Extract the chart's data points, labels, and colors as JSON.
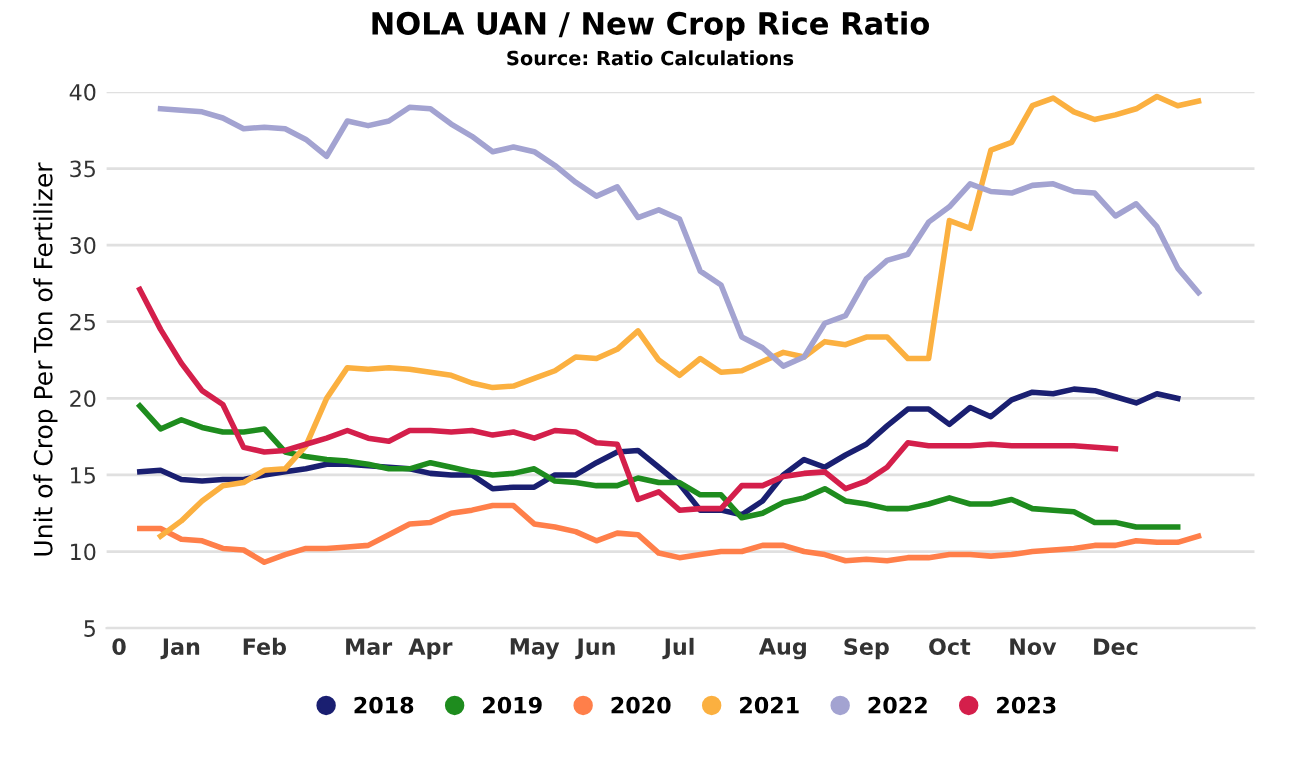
{
  "chart_data": {
    "type": "line",
    "title": "NOLA UAN / New Crop Rice Ratio",
    "subtitle": "Source: Ratio Calculations",
    "ylabel": "Unit of Crop Per Ton of Fertilizer",
    "categories": [
      "0",
      null,
      null,
      "Jan",
      null,
      null,
      null,
      "Feb",
      null,
      null,
      null,
      null,
      "Mar",
      null,
      null,
      "Apr",
      null,
      null,
      null,
      null,
      "May",
      null,
      null,
      "Jun",
      null,
      null,
      null,
      "Jul",
      null,
      null,
      null,
      null,
      "Aug",
      null,
      null,
      null,
      "Sep",
      null,
      null,
      null,
      "Oct",
      null,
      null,
      null,
      "Nov",
      null,
      null,
      null,
      "Dec",
      null,
      null,
      null,
      null,
      null,
      null
    ],
    "ylim": [
      5,
      40
    ],
    "yticks": [
      5,
      10,
      15,
      20,
      25,
      30,
      35,
      40
    ],
    "grid": "y",
    "legend": "bottom",
    "marker": "none",
    "line_style": "solid",
    "series": [
      {
        "name": "2018",
        "color": "#1a1f71",
        "values": [
          null,
          15.2,
          15.3,
          14.7,
          14.6,
          14.7,
          14.7,
          15.0,
          15.2,
          15.4,
          15.7,
          15.7,
          15.6,
          15.5,
          15.4,
          15.1,
          15.0,
          15.0,
          14.1,
          14.2,
          14.2,
          15.0,
          15.0,
          15.8,
          16.5,
          16.6,
          15.5,
          14.4,
          12.7,
          12.7,
          12.4,
          13.3,
          15.0,
          16.0,
          15.5,
          16.3,
          17.0,
          18.2,
          19.3,
          19.3,
          18.3,
          19.4,
          18.8,
          19.9,
          20.4,
          20.3,
          20.6,
          20.5,
          20.1,
          19.7,
          20.3,
          20.0,
          null,
          null,
          null
        ]
      },
      {
        "name": "2019",
        "color": "#1e8c1e",
        "values": [
          null,
          19.5,
          18.0,
          18.6,
          18.1,
          17.8,
          17.8,
          18.0,
          16.5,
          16.2,
          16.0,
          15.9,
          15.7,
          15.4,
          15.4,
          15.8,
          15.5,
          15.2,
          15.0,
          15.1,
          15.4,
          14.6,
          14.5,
          14.3,
          14.3,
          14.8,
          14.5,
          14.5,
          13.7,
          13.7,
          12.2,
          12.5,
          13.2,
          13.5,
          14.1,
          13.3,
          13.1,
          12.8,
          12.8,
          13.1,
          13.5,
          13.1,
          13.1,
          13.4,
          12.8,
          12.7,
          12.6,
          11.9,
          11.9,
          11.6,
          11.6,
          11.6,
          null,
          null,
          null
        ]
      },
      {
        "name": "2020",
        "color": "#ff7f4a",
        "values": [
          null,
          11.5,
          11.5,
          10.8,
          10.7,
          10.2,
          10.1,
          9.3,
          9.8,
          10.2,
          10.2,
          10.3,
          10.4,
          11.1,
          11.8,
          11.9,
          12.5,
          12.7,
          13.0,
          13.0,
          11.8,
          11.6,
          11.3,
          10.7,
          11.2,
          11.1,
          9.9,
          9.6,
          9.8,
          10.0,
          10.0,
          10.4,
          10.4,
          10.0,
          9.8,
          9.4,
          9.5,
          9.4,
          9.6,
          9.6,
          9.8,
          9.8,
          9.7,
          9.8,
          10.0,
          10.1,
          10.2,
          10.4,
          10.4,
          10.7,
          10.6,
          10.6,
          11.0,
          null,
          null
        ]
      },
      {
        "name": "2021",
        "color": "#fbb040",
        "values": [
          null,
          null,
          11.0,
          12.0,
          13.3,
          14.3,
          14.5,
          15.3,
          15.4,
          16.9,
          20.0,
          22.0,
          21.9,
          22.0,
          21.9,
          21.7,
          21.5,
          21.0,
          20.7,
          20.8,
          21.3,
          21.8,
          22.7,
          22.6,
          23.2,
          24.4,
          22.5,
          21.5,
          22.6,
          21.7,
          21.8,
          22.4,
          23.0,
          22.7,
          23.7,
          23.5,
          24.0,
          24.0,
          22.6,
          22.6,
          31.6,
          31.1,
          36.2,
          36.7,
          39.1,
          39.6,
          38.7,
          38.2,
          38.5,
          38.9,
          39.7,
          39.1,
          39.4,
          null,
          null
        ]
      },
      {
        "name": "2022",
        "color": "#a3a3d1",
        "values": [
          null,
          null,
          38.9,
          38.8,
          38.7,
          38.3,
          37.6,
          37.7,
          37.6,
          36.9,
          35.8,
          38.1,
          37.8,
          38.1,
          39.0,
          38.9,
          37.9,
          37.1,
          36.1,
          36.4,
          36.1,
          35.2,
          34.1,
          33.2,
          33.8,
          31.8,
          32.3,
          31.7,
          28.3,
          27.4,
          24.0,
          23.3,
          22.1,
          22.7,
          24.9,
          25.4,
          27.8,
          29.0,
          29.4,
          31.5,
          32.5,
          34.0,
          33.5,
          33.4,
          33.9,
          34.0,
          33.5,
          33.4,
          31.9,
          32.7,
          31.2,
          28.5,
          26.9,
          null,
          null
        ]
      },
      {
        "name": "2023",
        "color": "#d41f4b",
        "values": [
          null,
          27.1,
          24.5,
          22.3,
          20.5,
          19.6,
          16.8,
          16.5,
          16.6,
          17.0,
          17.4,
          17.9,
          17.4,
          17.2,
          17.9,
          17.9,
          17.8,
          17.9,
          17.6,
          17.8,
          17.4,
          17.9,
          17.8,
          17.1,
          17.0,
          13.4,
          13.9,
          12.7,
          12.8,
          12.8,
          14.3,
          14.3,
          14.9,
          15.1,
          15.2,
          14.1,
          14.6,
          15.5,
          17.1,
          16.9,
          16.9,
          16.9,
          17.0,
          16.9,
          16.9,
          16.9,
          16.9,
          16.8,
          16.7,
          null,
          null,
          null,
          null,
          null,
          null
        ]
      }
    ]
  }
}
